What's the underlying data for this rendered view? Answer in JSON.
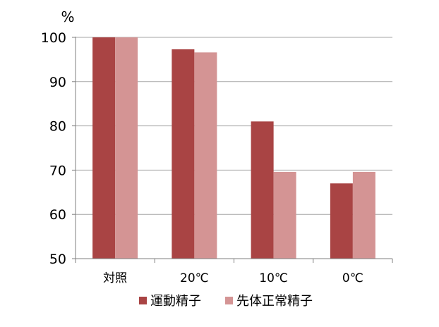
{
  "chart_data": {
    "type": "bar",
    "unit_label": "%",
    "categories": [
      "対照",
      "20℃",
      "10℃",
      "0℃"
    ],
    "series": [
      {
        "name": "運動精子",
        "color": "#a94444",
        "values": [
          100,
          97.3,
          81,
          67
        ]
      },
      {
        "name": "先体正常精子",
        "color": "#d49494",
        "values": [
          100,
          96.6,
          69.6,
          69.6
        ]
      }
    ],
    "ylim": [
      50,
      100
    ],
    "yticks": [
      50,
      60,
      70,
      80,
      90,
      100
    ],
    "grid": true,
    "legend_position": "bottom"
  }
}
